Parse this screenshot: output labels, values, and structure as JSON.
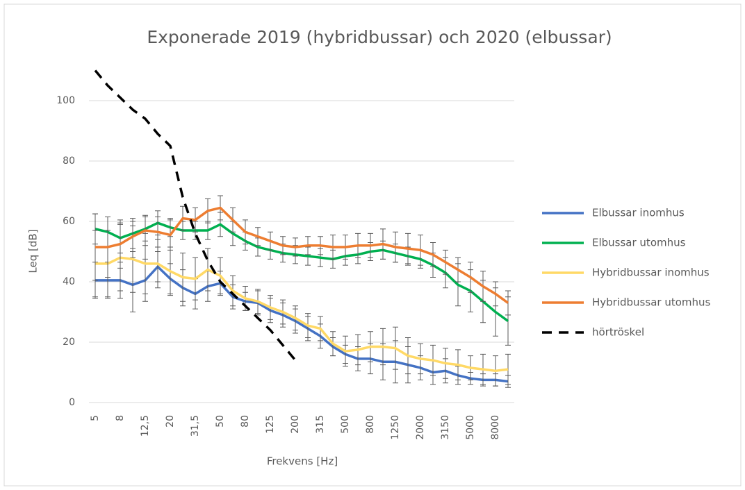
{
  "chart_data": {
    "type": "line",
    "title": "Exponerade 2019 (hybridbussar) och 2020 (elbussar)",
    "x_label": "Frekvens [Hz]",
    "y_label": "Leq [dB]",
    "categories": [
      "5",
      null,
      "8",
      null,
      "12,5",
      null,
      "20",
      null,
      "31,5",
      null,
      "50",
      null,
      "80",
      null,
      "125",
      null,
      "200",
      null,
      "315",
      null,
      "500",
      null,
      "800",
      null,
      "1250",
      null,
      "2000",
      null,
      "3150",
      null,
      "5000",
      null,
      "8000",
      null
    ],
    "ylim": [
      0,
      110
    ],
    "yticks": [
      0,
      20,
      40,
      60,
      80,
      100
    ],
    "grid": true,
    "legend": "right",
    "series": [
      {
        "name": "Elbussar inomhus",
        "color": "#4472c4",
        "values": [
          40.5,
          40.5,
          40.5,
          39,
          40.5,
          45,
          41,
          38,
          36,
          38.5,
          39.5,
          35,
          33.5,
          33,
          30.5,
          29,
          27,
          24.5,
          22,
          18.5,
          16,
          14.5,
          14.5,
          13.5,
          13.5,
          12.5,
          11.5,
          10,
          10.5,
          9,
          8,
          7.5,
          7.5,
          7
        ],
        "errors": [
          6,
          6,
          6,
          9,
          7,
          5,
          5,
          6,
          5,
          5,
          4,
          4,
          3,
          4,
          4,
          4,
          4,
          4,
          4,
          3,
          3,
          4,
          5,
          6,
          7,
          6,
          4,
          4,
          4,
          3,
          2,
          2,
          2,
          2
        ]
      },
      {
        "name": "Elbussar utomhus",
        "color": "#00b050",
        "values": [
          57.5,
          56.5,
          54.5,
          56,
          57.5,
          59.5,
          58,
          57,
          57,
          57,
          59,
          56,
          53.5,
          51.5,
          50.5,
          49.5,
          49,
          48.5,
          48,
          47.5,
          48.5,
          49,
          50,
          50.5,
          49.5,
          48.5,
          47.5,
          45.5,
          43,
          39,
          37,
          33.5,
          30,
          27
        ],
        "errors": [
          5,
          5,
          5,
          5,
          4,
          4,
          3,
          3,
          3,
          3,
          4,
          4,
          3,
          3,
          3,
          3,
          3,
          3,
          3,
          3,
          3,
          3,
          3,
          3,
          3,
          3,
          3,
          4,
          5,
          7,
          7,
          7,
          8,
          8
        ]
      },
      {
        "name": "Hybridbussar inomhus",
        "color": "#ffd966",
        "values": [
          46,
          46,
          48,
          47.5,
          46,
          46,
          43.5,
          41.5,
          41,
          44,
          42,
          37,
          34.5,
          33.5,
          31.5,
          30,
          28,
          25.5,
          24.5,
          19.5,
          17,
          17.5,
          18.5,
          18.5,
          18,
          15.5,
          14.5,
          14,
          13,
          12.5,
          11.5,
          11,
          10.5,
          11
        ],
        "errors": [
          11,
          11,
          11,
          11,
          10,
          8,
          8,
          8,
          7,
          7,
          6,
          5,
          4,
          4,
          4,
          4,
          4,
          4,
          4,
          4,
          5,
          5,
          5,
          6,
          7,
          6,
          5,
          5,
          5,
          5,
          4,
          5,
          5,
          5
        ]
      },
      {
        "name": "Hybridbussar utomhus",
        "color": "#ed7d31",
        "values": [
          51.5,
          51.5,
          52.5,
          55,
          57,
          56.5,
          55.5,
          61,
          60.5,
          63.5,
          64.5,
          60.5,
          56.5,
          55,
          53.5,
          52,
          51.5,
          52,
          52,
          51.5,
          51.5,
          52,
          52,
          52.5,
          51.5,
          51,
          50.5,
          49,
          46.5,
          44,
          41.5,
          38.5,
          36,
          33
        ],
        "errors": [
          11,
          10,
          8,
          5,
          5,
          5,
          5,
          4,
          4,
          4,
          4,
          4,
          4,
          3,
          3,
          3,
          3,
          3,
          3,
          4,
          4,
          4,
          4,
          5,
          5,
          5,
          5,
          4,
          4,
          4,
          5,
          5,
          4,
          4
        ]
      },
      {
        "name": "hörtröskel",
        "color": "#000000",
        "line_style": "dashed",
        "values": [
          110,
          105,
          101,
          97,
          94,
          89,
          85,
          68,
          56,
          47,
          40,
          36,
          32,
          28,
          24,
          19,
          14,
          null,
          null,
          null,
          null,
          null,
          null,
          null,
          null,
          null,
          null,
          null,
          null,
          null,
          null,
          null,
          null,
          null
        ]
      }
    ]
  }
}
